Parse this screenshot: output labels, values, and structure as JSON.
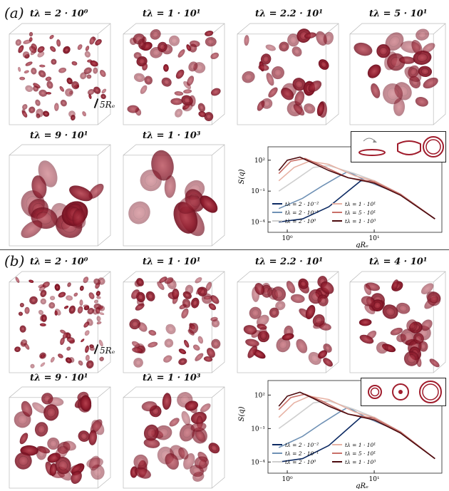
{
  "panels": [
    {
      "label": "(a)",
      "times": [
        "tλ = 2 · 10⁰",
        "tλ = 1 · 10¹",
        "tλ = 2.2 · 10¹",
        "tλ = 5 · 10¹",
        "tλ = 9 · 10¹",
        "tλ = 1 · 10³"
      ],
      "scale_label": "5Rₑ",
      "chart": {
        "ylabel": "S(q)",
        "xlabel": "qRₑ",
        "yticks": [
          "10²",
          "10⁻¹",
          "10⁻⁴"
        ],
        "xticks": [
          "10⁰",
          "10¹"
        ],
        "legend": [
          "tλ = 2 · 10⁻²",
          "tλ = 2 · 10⁻¹",
          "tλ = 2 · 10⁰",
          "tλ = 1 · 10¹",
          "tλ = 5 · 10¹",
          "tλ = 1 · 10³"
        ]
      }
    },
    {
      "label": "(b)",
      "times": [
        "tλ = 2 · 10⁰",
        "tλ = 1 · 10¹",
        "tλ = 2.2 · 10¹",
        "tλ = 4 · 10¹",
        "tλ = 9 · 10¹",
        "tλ = 1 · 10³"
      ],
      "scale_label": "5Rₑ",
      "chart": {
        "ylabel": "S(q)",
        "xlabel": "qRₑ",
        "yticks": [
          "10²",
          "10⁻¹",
          "10⁻⁴"
        ],
        "xticks": [
          "10⁰",
          "10¹"
        ],
        "legend": [
          "tλ = 2 · 10⁻²",
          "tλ = 2 · 10⁻¹",
          "tλ = 2 · 10⁰",
          "tλ = 1 · 10¹",
          "tλ = 5 · 10¹",
          "tλ = 1 · 10³"
        ]
      }
    }
  ],
  "colors": {
    "series": [
      "#0d2a63",
      "#6f91b5",
      "#cfcfcf",
      "#e7b2a4",
      "#c97068",
      "#4b0a0e"
    ],
    "cell": "#8e1b2c",
    "cell_dark": "#6e1020"
  },
  "chart_data": [
    {
      "type": "line",
      "xscale": "log",
      "yscale": "log",
      "xlabel": "qRe",
      "ylabel": "S(q)",
      "xlim": [
        0.6,
        60
      ],
      "ylim": [
        1e-05,
        2000
      ],
      "series": [
        {
          "name": "tλ = 2 · 10⁻²",
          "x": [
            0.8,
            1.5,
            3,
            5,
            7,
            10,
            20,
            50
          ],
          "y": [
            0.0001,
            0.0002,
            0.003,
            0.1,
            1,
            1,
            0.05,
            0.0002
          ]
        },
        {
          "name": "tλ = 2 · 10⁻¹",
          "x": [
            0.8,
            1.5,
            2.5,
            4,
            5,
            8,
            20,
            50
          ],
          "y": [
            0.002,
            0.02,
            0.3,
            3,
            8,
            1,
            0.05,
            0.0002
          ]
        },
        {
          "name": "tλ = 2 · 10⁰",
          "x": [
            0.8,
            1.2,
            2,
            3,
            6,
            10,
            20,
            50
          ],
          "y": [
            0.1,
            1,
            20,
            30,
            5,
            1,
            0.05,
            0.0002
          ]
        },
        {
          "name": "tλ = 1 · 10¹",
          "x": [
            0.8,
            1.2,
            1.8,
            3,
            6,
            10,
            20,
            50
          ],
          "y": [
            1,
            20,
            80,
            40,
            3,
            1,
            0.05,
            0.0002
          ]
        },
        {
          "name": "tλ = 5 · 10¹",
          "x": [
            0.8,
            1.1,
            1.6,
            2.5,
            5,
            10,
            20,
            50
          ],
          "y": [
            5,
            80,
            150,
            30,
            2,
            0.8,
            0.05,
            0.0002
          ]
        },
        {
          "name": "tλ = 1 · 10³",
          "x": [
            0.8,
            1,
            1.4,
            2,
            3,
            5,
            10,
            20,
            50
          ],
          "y": [
            10,
            100,
            200,
            50,
            10,
            2,
            0.6,
            0.04,
            0.0002
          ]
        }
      ]
    },
    {
      "type": "line",
      "xscale": "log",
      "yscale": "log",
      "xlabel": "qRe",
      "ylabel": "S(q)",
      "xlim": [
        0.6,
        60
      ],
      "ylim": [
        1e-05,
        2000
      ],
      "series": [
        {
          "name": "tλ = 2 · 10⁻²",
          "x": [
            0.8,
            1.5,
            3,
            5,
            7,
            10,
            20,
            50
          ],
          "y": [
            0.0001,
            0.0002,
            0.003,
            0.1,
            1,
            1,
            0.05,
            0.0002
          ]
        },
        {
          "name": "tλ = 2 · 10⁻¹",
          "x": [
            0.8,
            1.5,
            2.5,
            4,
            5,
            8,
            20,
            50
          ],
          "y": [
            0.002,
            0.02,
            0.3,
            3,
            8,
            1,
            0.05,
            0.0002
          ]
        },
        {
          "name": "tλ = 2 · 10⁰",
          "x": [
            0.8,
            1.2,
            2,
            3,
            6,
            10,
            20,
            50
          ],
          "y": [
            0.1,
            1,
            20,
            30,
            5,
            1,
            0.05,
            0.0002
          ]
        },
        {
          "name": "tλ = 1 · 10¹",
          "x": [
            0.8,
            1.2,
            1.8,
            3,
            6,
            10,
            20,
            50
          ],
          "y": [
            1,
            20,
            80,
            40,
            3,
            1,
            0.05,
            0.0002
          ]
        },
        {
          "name": "tλ = 5 · 10¹",
          "x": [
            0.8,
            1.1,
            1.6,
            2.5,
            5,
            10,
            20,
            50
          ],
          "y": [
            5,
            60,
            120,
            30,
            2,
            0.8,
            0.05,
            0.0002
          ]
        },
        {
          "name": "tλ = 1 · 10³",
          "x": [
            0.8,
            1,
            1.4,
            2,
            3,
            5,
            10,
            20,
            50
          ],
          "y": [
            10,
            80,
            180,
            50,
            10,
            2,
            0.6,
            0.04,
            0.0002
          ]
        }
      ]
    }
  ]
}
